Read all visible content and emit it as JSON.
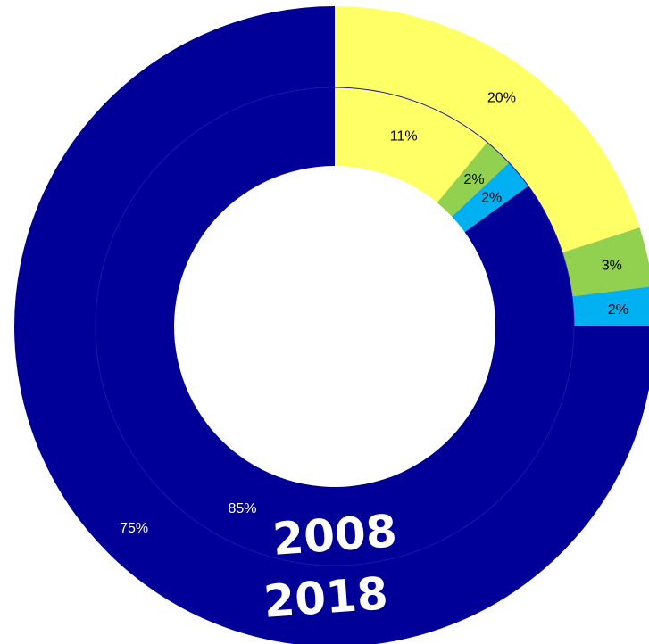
{
  "chart_data": {
    "type": "pie",
    "subtype": "nested-donut",
    "title": "",
    "rings": [
      {
        "name": "2018",
        "position": "outer",
        "slices": [
          {
            "value": 20,
            "label": "20%",
            "color": "#ffff66"
          },
          {
            "value": 3,
            "label": "3%",
            "color": "#92d050"
          },
          {
            "value": 2,
            "label": "2%",
            "color": "#00b0f0"
          },
          {
            "value": 75,
            "label": "75%",
            "color": "#000099"
          }
        ]
      },
      {
        "name": "2008",
        "position": "inner",
        "slices": [
          {
            "value": 11,
            "label": "11%",
            "color": "#ffff66"
          },
          {
            "value": 2,
            "label": "2%",
            "color": "#92d050"
          },
          {
            "value": 2,
            "label": "2%",
            "color": "#00b0f0"
          },
          {
            "value": 85,
            "label": "85%",
            "color": "#000099"
          }
        ]
      }
    ],
    "legend": "none"
  }
}
